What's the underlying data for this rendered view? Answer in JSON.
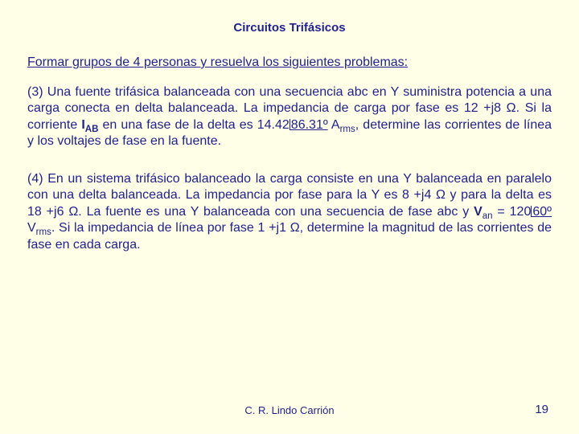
{
  "colors": {
    "background": "#ffffe7",
    "text_primary": "#1f1f8f"
  },
  "typography": {
    "title_fontsize": 15,
    "body_fontsize": 16,
    "footer_author_fontsize": 13,
    "footer_page_fontsize": 15,
    "font_family": "Arial"
  },
  "title": "Circuitos Trifásicos",
  "instruction": "Formar grupos de 4 personas y resuelva los siguientes problemas:",
  "problems": {
    "p3": {
      "lead": "(3) Una fuente trifásica balanceada con una secuencia abc en Y suministra potencia a una carga conecta en delta balanceada. La impedancia de carga por fase es 12 +j8 Ω. Si la corriente ",
      "current_sym_main": "I",
      "current_sym_sub": "AB",
      "mid1": " en una fase de la delta es 14.42",
      "angle": "86.31º",
      "mid2": " A",
      "rms_sub": "rms",
      "tail": ", determine las corrientes de línea y los voltajes de fase en la fuente."
    },
    "p4": {
      "lead": "(4) En un sistema trifásico balanceado la carga consiste en una Y balanceada en paralelo con una delta balanceada. La impedancia por fase para la Y es 8 +j4 Ω y para la delta es 18 +j6 Ω. La fuente es una Y balanceada con una secuencia de fase abc y ",
      "volt_sym_main": "V",
      "volt_sym_sub": "an",
      "eq": " = 120",
      "angle": "60º",
      "mid": " V",
      "rms_sub": "rms",
      "tail": ". Si la impedancia de línea por fase 1 +j1 Ω, determine la magnitud de las corrientes de fase en cada carga."
    }
  },
  "footer": {
    "author": "C. R. Lindo Carrión",
    "page": "19"
  }
}
